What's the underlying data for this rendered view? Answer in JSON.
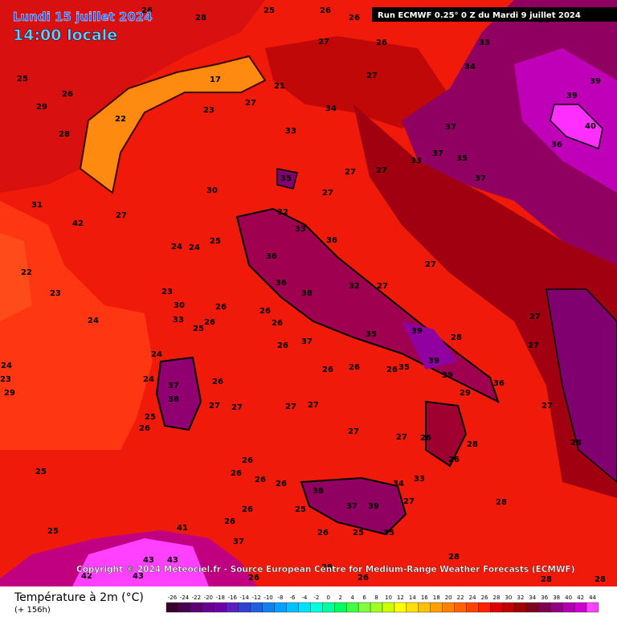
{
  "header": {
    "date": "Lundi 15 juillet 2024",
    "time": "14:00 locale",
    "run": "Run ECMWF 0.25° 0 Z du Mardi 9 juillet 2024"
  },
  "copyright": "Copyright © 2024 Meteociel.fr - Source European Centre for Medium-Range Weather Forecasts (ECMWF)",
  "legend": {
    "title": "Température à 2m (°C)",
    "subtitle": "(+ 156h)",
    "ticks": [
      -26,
      -24,
      -22,
      -20,
      -18,
      -16,
      -14,
      -12,
      -10,
      -8,
      -6,
      -4,
      -2,
      0,
      2,
      4,
      6,
      8,
      10,
      12,
      14,
      16,
      18,
      20,
      22,
      24,
      26,
      28,
      30,
      32,
      34,
      36,
      38,
      40,
      42,
      44
    ],
    "colors": [
      "#3a0030",
      "#4a0050",
      "#5a0070",
      "#6a0090",
      "#7000a8",
      "#5a20c0",
      "#3040d0",
      "#2060e0",
      "#1080f0",
      "#00a0ff",
      "#00c0ff",
      "#00e0ff",
      "#00ffe0",
      "#00ffa0",
      "#00ff60",
      "#40ff40",
      "#80ff40",
      "#a0ff20",
      "#d0ff00",
      "#ffff00",
      "#ffe000",
      "#ffc000",
      "#ffa000",
      "#ff8000",
      "#ff6000",
      "#ff4000",
      "#ff2000",
      "#e00000",
      "#c00000",
      "#a00000",
      "#800020",
      "#800050",
      "#900080",
      "#b000b0",
      "#d000d0",
      "#ff40ff"
    ]
  },
  "map_labels": [
    26,
    28,
    26,
    26,
    25,
    27,
    26,
    33,
    36,
    34,
    27,
    21,
    17,
    39,
    39,
    40,
    36,
    27,
    23,
    22,
    29,
    26,
    25,
    28,
    33,
    34,
    37,
    37,
    35,
    33,
    35,
    27,
    27,
    27,
    37,
    30,
    31,
    27,
    42,
    22,
    23,
    24,
    24,
    24,
    25,
    32,
    33,
    27,
    36,
    36,
    36,
    38,
    32,
    27,
    28,
    27,
    27,
    39,
    39,
    35,
    37,
    26,
    26,
    26,
    26,
    26,
    26,
    26,
    35,
    39,
    36,
    29,
    37,
    38,
    26,
    27,
    27,
    27,
    27,
    27,
    27,
    26,
    28,
    26,
    27,
    28,
    26,
    25,
    26,
    26,
    26,
    26,
    38,
    37,
    39,
    27,
    34,
    33,
    28,
    25,
    26,
    26,
    25,
    35,
    26,
    37,
    41,
    43,
    43,
    43,
    42,
    25,
    28,
    28,
    28,
    26,
    26,
    28,
    24,
    29,
    23,
    24,
    24,
    25,
    23,
    30,
    33,
    25,
    26
  ]
}
